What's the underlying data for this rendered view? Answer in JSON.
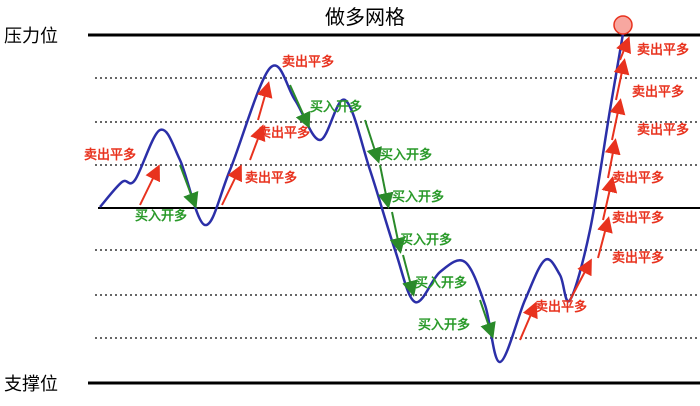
{
  "title": "做多网格",
  "levels": {
    "resistance": "压力位",
    "support": "支撑位"
  },
  "sell_labels": [
    "卖出平多",
    "卖出平多",
    "卖出平多",
    "卖出平多",
    "卖出平多",
    "卖出平多",
    "卖出平多",
    "卖出平多",
    "卖出平多",
    "卖出平多",
    "卖出平多"
  ],
  "buy_labels": [
    "买入开多",
    "买入开多",
    "买入开多",
    "买入开多",
    "买入开多",
    "买入开多",
    "买入开多"
  ]
}
